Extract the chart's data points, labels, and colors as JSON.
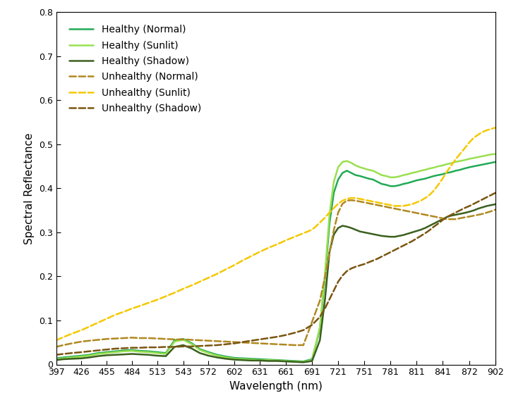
{
  "title": "",
  "xlabel": "Wavelength (nm)",
  "ylabel": "Spectral Reflectance",
  "xlim": [
    397,
    902
  ],
  "ylim": [
    0,
    0.8
  ],
  "xtick_labels": [
    "397",
    "426",
    "455",
    "484",
    "513",
    "543",
    "572",
    "602",
    "631",
    "661",
    "691",
    "721",
    "751",
    "781",
    "811",
    "841",
    "872",
    "902"
  ],
  "xtick_values": [
    397,
    426,
    455,
    484,
    513,
    543,
    572,
    602,
    631,
    661,
    691,
    721,
    751,
    781,
    811,
    841,
    872,
    902
  ],
  "ytick_values": [
    0,
    0.1,
    0.2,
    0.3,
    0.4,
    0.5,
    0.6,
    0.7,
    0.8
  ],
  "series": [
    {
      "label": "Healthy (Normal)",
      "color": "#22aa55",
      "linestyle": "solid",
      "linewidth": 1.8,
      "x": [
        397,
        405,
        415,
        426,
        435,
        445,
        455,
        465,
        475,
        484,
        493,
        503,
        513,
        523,
        533,
        543,
        553,
        562,
        572,
        582,
        592,
        602,
        611,
        621,
        631,
        641,
        651,
        661,
        671,
        681,
        691,
        700,
        706,
        711,
        716,
        721,
        726,
        731,
        736,
        741,
        746,
        751,
        756,
        761,
        766,
        771,
        776,
        781,
        786,
        791,
        796,
        801,
        806,
        811,
        816,
        821,
        826,
        831,
        836,
        841,
        846,
        851,
        856,
        861,
        866,
        872,
        877,
        882,
        887,
        892,
        897,
        902
      ],
      "y": [
        0.014,
        0.016,
        0.018,
        0.02,
        0.022,
        0.026,
        0.028,
        0.03,
        0.032,
        0.033,
        0.031,
        0.03,
        0.028,
        0.026,
        0.055,
        0.058,
        0.048,
        0.035,
        0.028,
        0.022,
        0.018,
        0.015,
        0.014,
        0.013,
        0.012,
        0.011,
        0.01,
        0.009,
        0.008,
        0.007,
        0.012,
        0.08,
        0.2,
        0.32,
        0.39,
        0.42,
        0.435,
        0.44,
        0.435,
        0.43,
        0.428,
        0.425,
        0.422,
        0.42,
        0.415,
        0.41,
        0.408,
        0.405,
        0.405,
        0.407,
        0.41,
        0.412,
        0.415,
        0.418,
        0.42,
        0.422,
        0.425,
        0.428,
        0.43,
        0.432,
        0.435,
        0.437,
        0.44,
        0.442,
        0.445,
        0.448,
        0.45,
        0.452,
        0.454,
        0.456,
        0.458,
        0.46
      ]
    },
    {
      "label": "Healthy (Sunlit)",
      "color": "#99e050",
      "linestyle": "solid",
      "linewidth": 1.8,
      "x": [
        397,
        405,
        415,
        426,
        435,
        445,
        455,
        465,
        475,
        484,
        493,
        503,
        513,
        523,
        533,
        543,
        553,
        562,
        572,
        582,
        592,
        602,
        611,
        621,
        631,
        641,
        651,
        661,
        671,
        681,
        691,
        700,
        706,
        711,
        716,
        721,
        726,
        731,
        736,
        741,
        746,
        751,
        756,
        761,
        766,
        771,
        776,
        781,
        786,
        791,
        796,
        801,
        806,
        811,
        816,
        821,
        826,
        831,
        836,
        841,
        846,
        851,
        856,
        861,
        866,
        872,
        877,
        882,
        887,
        892,
        897,
        902
      ],
      "y": [
        0.012,
        0.014,
        0.016,
        0.018,
        0.02,
        0.024,
        0.026,
        0.028,
        0.03,
        0.031,
        0.029,
        0.028,
        0.026,
        0.024,
        0.052,
        0.056,
        0.046,
        0.033,
        0.026,
        0.02,
        0.016,
        0.013,
        0.012,
        0.011,
        0.01,
        0.01,
        0.009,
        0.008,
        0.007,
        0.006,
        0.01,
        0.085,
        0.21,
        0.34,
        0.415,
        0.448,
        0.46,
        0.462,
        0.458,
        0.452,
        0.448,
        0.445,
        0.442,
        0.44,
        0.435,
        0.43,
        0.428,
        0.425,
        0.425,
        0.427,
        0.43,
        0.432,
        0.435,
        0.437,
        0.44,
        0.442,
        0.445,
        0.447,
        0.45,
        0.452,
        0.455,
        0.457,
        0.46,
        0.462,
        0.464,
        0.467,
        0.469,
        0.471,
        0.473,
        0.475,
        0.477,
        0.478
      ]
    },
    {
      "label": "Healthy (Shadow)",
      "color": "#3a5f1e",
      "linestyle": "solid",
      "linewidth": 1.8,
      "x": [
        397,
        405,
        415,
        426,
        435,
        445,
        455,
        465,
        475,
        484,
        493,
        503,
        513,
        523,
        533,
        543,
        553,
        562,
        572,
        582,
        592,
        602,
        611,
        621,
        631,
        641,
        651,
        661,
        671,
        681,
        691,
        700,
        706,
        711,
        716,
        721,
        726,
        731,
        736,
        741,
        746,
        751,
        756,
        761,
        766,
        771,
        776,
        781,
        786,
        791,
        796,
        801,
        806,
        811,
        816,
        821,
        826,
        831,
        836,
        841,
        846,
        851,
        856,
        861,
        866,
        872,
        877,
        882,
        887,
        892,
        897,
        902
      ],
      "y": [
        0.01,
        0.012,
        0.013,
        0.014,
        0.016,
        0.019,
        0.021,
        0.022,
        0.023,
        0.024,
        0.023,
        0.022,
        0.02,
        0.019,
        0.04,
        0.044,
        0.036,
        0.026,
        0.02,
        0.016,
        0.013,
        0.011,
        0.01,
        0.009,
        0.009,
        0.008,
        0.008,
        0.007,
        0.006,
        0.005,
        0.008,
        0.055,
        0.15,
        0.255,
        0.295,
        0.31,
        0.315,
        0.313,
        0.31,
        0.306,
        0.302,
        0.3,
        0.298,
        0.296,
        0.294,
        0.292,
        0.291,
        0.29,
        0.29,
        0.292,
        0.294,
        0.297,
        0.3,
        0.303,
        0.306,
        0.31,
        0.315,
        0.32,
        0.325,
        0.33,
        0.335,
        0.338,
        0.34,
        0.342,
        0.344,
        0.347,
        0.35,
        0.354,
        0.357,
        0.36,
        0.362,
        0.364
      ]
    },
    {
      "label": "Unhealthy (Normal)",
      "color": "#b08820",
      "linestyle": "dashed",
      "linewidth": 1.8,
      "x": [
        397,
        405,
        415,
        426,
        435,
        445,
        455,
        465,
        475,
        484,
        493,
        503,
        513,
        523,
        533,
        543,
        553,
        562,
        572,
        582,
        592,
        602,
        611,
        621,
        631,
        641,
        651,
        661,
        671,
        681,
        691,
        700,
        706,
        711,
        716,
        721,
        726,
        731,
        736,
        741,
        746,
        751,
        756,
        761,
        766,
        771,
        776,
        781,
        786,
        791,
        796,
        801,
        806,
        811,
        816,
        821,
        826,
        831,
        836,
        841,
        846,
        851,
        856,
        861,
        866,
        872,
        877,
        882,
        887,
        892,
        897,
        902
      ],
      "y": [
        0.04,
        0.044,
        0.048,
        0.052,
        0.054,
        0.056,
        0.058,
        0.059,
        0.06,
        0.061,
        0.06,
        0.06,
        0.059,
        0.058,
        0.057,
        0.057,
        0.056,
        0.055,
        0.054,
        0.053,
        0.052,
        0.051,
        0.05,
        0.049,
        0.048,
        0.047,
        0.046,
        0.045,
        0.044,
        0.044,
        0.097,
        0.145,
        0.2,
        0.255,
        0.305,
        0.345,
        0.365,
        0.372,
        0.373,
        0.372,
        0.37,
        0.368,
        0.366,
        0.364,
        0.362,
        0.36,
        0.358,
        0.356,
        0.354,
        0.352,
        0.35,
        0.348,
        0.346,
        0.344,
        0.342,
        0.34,
        0.338,
        0.336,
        0.334,
        0.332,
        0.33,
        0.33,
        0.33,
        0.332,
        0.334,
        0.336,
        0.338,
        0.34,
        0.342,
        0.345,
        0.348,
        0.352
      ]
    },
    {
      "label": "Unhealthy (Sunlit)",
      "color": "#f5c800",
      "linestyle": "dashed",
      "linewidth": 1.8,
      "x": [
        397,
        405,
        415,
        426,
        435,
        445,
        455,
        465,
        475,
        484,
        493,
        503,
        513,
        523,
        533,
        543,
        553,
        562,
        572,
        582,
        592,
        602,
        611,
        621,
        631,
        641,
        651,
        661,
        671,
        681,
        691,
        700,
        706,
        711,
        716,
        721,
        726,
        731,
        736,
        741,
        746,
        751,
        756,
        761,
        766,
        771,
        776,
        781,
        786,
        791,
        796,
        801,
        806,
        811,
        816,
        821,
        826,
        831,
        836,
        841,
        846,
        851,
        856,
        861,
        866,
        872,
        877,
        882,
        887,
        892,
        897,
        902
      ],
      "y": [
        0.055,
        0.062,
        0.07,
        0.078,
        0.086,
        0.095,
        0.104,
        0.113,
        0.12,
        0.127,
        0.133,
        0.14,
        0.147,
        0.155,
        0.163,
        0.172,
        0.18,
        0.188,
        0.197,
        0.206,
        0.216,
        0.226,
        0.236,
        0.246,
        0.256,
        0.265,
        0.273,
        0.282,
        0.29,
        0.298,
        0.306,
        0.322,
        0.334,
        0.345,
        0.355,
        0.365,
        0.372,
        0.376,
        0.378,
        0.378,
        0.376,
        0.374,
        0.372,
        0.37,
        0.368,
        0.366,
        0.364,
        0.362,
        0.36,
        0.36,
        0.36,
        0.362,
        0.364,
        0.368,
        0.372,
        0.378,
        0.385,
        0.395,
        0.408,
        0.422,
        0.438,
        0.452,
        0.466,
        0.478,
        0.49,
        0.505,
        0.515,
        0.522,
        0.528,
        0.532,
        0.535,
        0.538
      ]
    },
    {
      "label": "Unhealthy (Shadow)",
      "color": "#7a5510",
      "linestyle": "dashed",
      "linewidth": 1.8,
      "x": [
        397,
        405,
        415,
        426,
        435,
        445,
        455,
        465,
        475,
        484,
        493,
        503,
        513,
        523,
        533,
        543,
        553,
        562,
        572,
        582,
        592,
        602,
        611,
        621,
        631,
        641,
        651,
        661,
        671,
        681,
        691,
        700,
        706,
        711,
        716,
        721,
        726,
        731,
        736,
        741,
        746,
        751,
        756,
        761,
        766,
        771,
        776,
        781,
        786,
        791,
        796,
        801,
        806,
        811,
        816,
        821,
        826,
        831,
        836,
        841,
        846,
        851,
        856,
        861,
        866,
        872,
        877,
        882,
        887,
        892,
        897,
        902
      ],
      "y": [
        0.022,
        0.024,
        0.026,
        0.028,
        0.03,
        0.032,
        0.034,
        0.036,
        0.037,
        0.038,
        0.038,
        0.039,
        0.039,
        0.04,
        0.04,
        0.041,
        0.041,
        0.042,
        0.043,
        0.044,
        0.046,
        0.048,
        0.051,
        0.054,
        0.057,
        0.06,
        0.063,
        0.067,
        0.072,
        0.078,
        0.09,
        0.108,
        0.128,
        0.148,
        0.168,
        0.188,
        0.202,
        0.212,
        0.218,
        0.222,
        0.225,
        0.228,
        0.232,
        0.236,
        0.24,
        0.245,
        0.25,
        0.255,
        0.26,
        0.265,
        0.27,
        0.275,
        0.28,
        0.286,
        0.292,
        0.298,
        0.305,
        0.313,
        0.32,
        0.328,
        0.335,
        0.34,
        0.345,
        0.35,
        0.355,
        0.36,
        0.365,
        0.37,
        0.375,
        0.38,
        0.385,
        0.39
      ]
    }
  ],
  "legend_fontsize": 10,
  "axis_label_fontsize": 11,
  "tick_fontsize": 9,
  "legend_loc": "upper left",
  "background_color": "#ffffff"
}
